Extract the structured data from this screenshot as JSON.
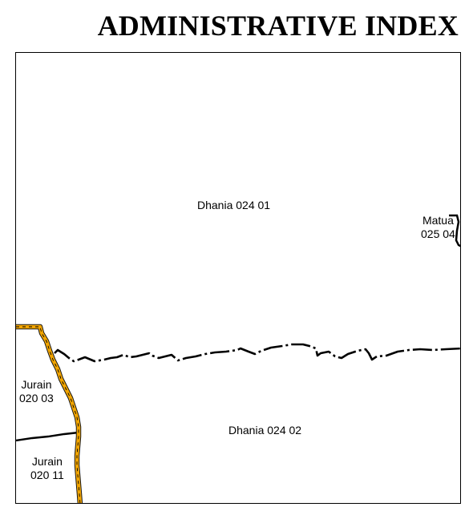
{
  "title": "ADMINISTRATIVE INDEX",
  "colors": {
    "district_boundary": "#f2a500",
    "boundary_line": "#000000",
    "frame": "#000000"
  },
  "regions": [
    {
      "id": "dhania-024-01",
      "lines": [
        "Dhania 024 01"
      ]
    },
    {
      "id": "matua-025-04",
      "lines": [
        "Matua",
        "025 04"
      ]
    },
    {
      "id": "jurain-020-03",
      "lines": [
        "Jurain",
        "020 03"
      ]
    },
    {
      "id": "dhania-024-02",
      "lines": [
        "Dhania 024 02"
      ]
    },
    {
      "id": "jurain-020-11",
      "lines": [
        "Jurain",
        "020 11"
      ]
    }
  ]
}
